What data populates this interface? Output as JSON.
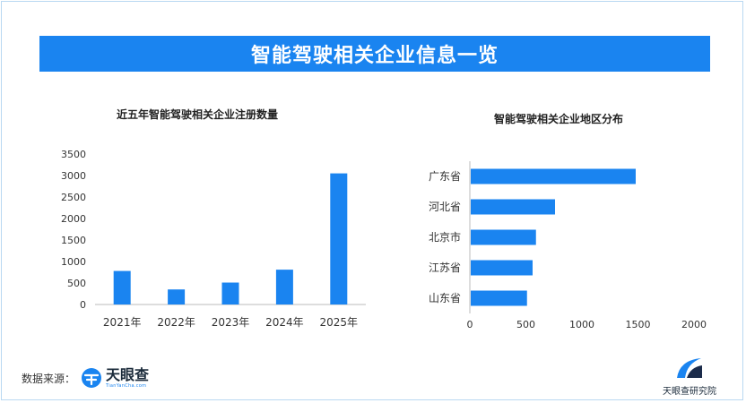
{
  "banner": {
    "title": "智能驾驶相关企业信息一览"
  },
  "chart_data": [
    {
      "type": "bar",
      "title": "近五年智能驾驶相关企业注册数量",
      "categories": [
        "2021年",
        "2022年",
        "2023年",
        "2024年",
        "2025年"
      ],
      "values": [
        780,
        350,
        510,
        810,
        3050
      ],
      "ylim": [
        0,
        3500
      ],
      "yticks": [
        "0",
        "500",
        "1000",
        "1500",
        "2000",
        "2500",
        "3000",
        "3500"
      ],
      "grid": false,
      "color": "#1a84f0"
    },
    {
      "type": "bar",
      "orientation": "horizontal",
      "title": "智能驾驶相关企业地区分布",
      "categories": [
        "广东省",
        "河北省",
        "北京市",
        "江苏省",
        "山东省"
      ],
      "values": [
        1480,
        760,
        590,
        560,
        510
      ],
      "xlim": [
        0,
        2000
      ],
      "xticks": [
        "0",
        "500",
        "1000",
        "1500",
        "2000"
      ],
      "grid": false,
      "color": "#1a84f0"
    }
  ],
  "footer": {
    "source_label": "数据来源：",
    "brand_name": "天眼查",
    "brand_sub": "TianYanCha.com",
    "right_logo_text": "天眼查研究院"
  }
}
